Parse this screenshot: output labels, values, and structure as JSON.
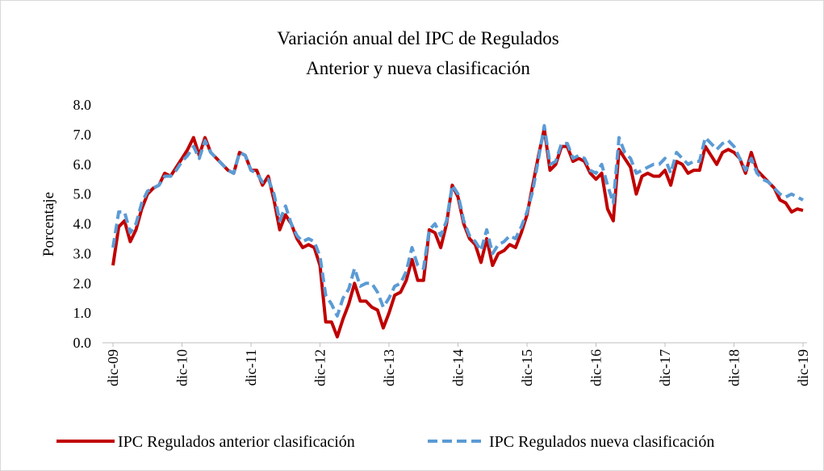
{
  "chart_data": {
    "type": "line",
    "title": "Variación anual del IPC de Regulados",
    "subtitle": "Anterior y nueva clasificación",
    "y_label": "Porcentaje",
    "categories": [
      "dic-09",
      null,
      null,
      null,
      null,
      null,
      null,
      null,
      null,
      null,
      null,
      null,
      "dic-10",
      null,
      null,
      null,
      null,
      null,
      null,
      null,
      null,
      null,
      null,
      null,
      "dic-11",
      null,
      null,
      null,
      null,
      null,
      null,
      null,
      null,
      null,
      null,
      null,
      "dic-12",
      null,
      null,
      null,
      null,
      null,
      null,
      null,
      null,
      null,
      null,
      null,
      "dic-13",
      null,
      null,
      null,
      null,
      null,
      null,
      null,
      null,
      null,
      null,
      null,
      "dic-14",
      null,
      null,
      null,
      null,
      null,
      null,
      null,
      null,
      null,
      null,
      null,
      "dic-15",
      null,
      null,
      null,
      null,
      null,
      null,
      null,
      null,
      null,
      null,
      null,
      "dic-16",
      null,
      null,
      null,
      null,
      null,
      null,
      null,
      null,
      null,
      null,
      null,
      "dic-17",
      null,
      null,
      null,
      null,
      null,
      null,
      null,
      null,
      null,
      null,
      null,
      "dic-18",
      null,
      null,
      null,
      null,
      null,
      null,
      null,
      null,
      null,
      null,
      null,
      "dic-19"
    ],
    "series": [
      {
        "name": "IPC Regulados anterior clasificación",
        "color": "#c00000",
        "dash": false,
        "values": [
          2.6,
          3.9,
          4.1,
          3.4,
          3.8,
          4.5,
          5.0,
          5.2,
          5.3,
          5.7,
          5.6,
          5.9,
          6.2,
          6.5,
          6.9,
          6.3,
          6.9,
          6.4,
          6.2,
          6.0,
          5.8,
          5.7,
          6.4,
          6.3,
          5.8,
          5.8,
          5.3,
          5.6,
          4.8,
          3.8,
          4.3,
          4.0,
          3.5,
          3.2,
          3.3,
          3.2,
          2.6,
          0.7,
          0.7,
          0.2,
          0.8,
          1.3,
          2.0,
          1.4,
          1.4,
          1.2,
          1.1,
          0.5,
          1.0,
          1.6,
          1.7,
          2.1,
          2.8,
          2.1,
          2.1,
          3.8,
          3.7,
          3.2,
          4.0,
          5.3,
          4.9,
          4.0,
          3.5,
          3.3,
          2.7,
          3.5,
          2.6,
          3.0,
          3.1,
          3.3,
          3.2,
          3.7,
          4.3,
          5.3,
          6.3,
          7.2,
          5.8,
          6.0,
          6.6,
          6.6,
          6.1,
          6.2,
          6.1,
          5.7,
          5.5,
          5.7,
          4.5,
          4.1,
          6.5,
          6.2,
          5.9,
          5.0,
          5.6,
          5.7,
          5.6,
          5.6,
          5.8,
          5.3,
          6.1,
          6.0,
          5.7,
          5.8,
          5.8,
          6.6,
          6.3,
          6.0,
          6.4,
          6.5,
          6.4,
          6.2,
          5.7,
          6.4,
          5.8,
          5.6,
          5.4,
          5.2,
          4.8,
          4.7,
          4.4,
          4.5,
          4.45
        ]
      },
      {
        "name": "IPC Regulados nueva clasificación",
        "color": "#5b9bd5",
        "dash": true,
        "values": [
          3.2,
          4.4,
          4.4,
          3.7,
          4.0,
          4.7,
          5.1,
          5.2,
          5.3,
          5.6,
          5.6,
          5.8,
          6.1,
          6.3,
          6.6,
          6.2,
          6.8,
          6.4,
          6.2,
          6.0,
          5.8,
          5.7,
          6.4,
          6.3,
          5.8,
          5.7,
          5.4,
          5.5,
          5.0,
          4.1,
          4.6,
          4.0,
          3.6,
          3.4,
          3.5,
          3.4,
          2.9,
          1.6,
          1.3,
          0.9,
          1.5,
          1.8,
          2.5,
          1.9,
          2.0,
          2.0,
          1.7,
          1.2,
          1.5,
          1.9,
          2.0,
          2.4,
          3.2,
          2.6,
          2.5,
          3.8,
          4.0,
          3.6,
          4.1,
          5.3,
          5.0,
          4.1,
          3.6,
          3.4,
          3.1,
          3.8,
          3.0,
          3.3,
          3.4,
          3.6,
          3.5,
          3.9,
          4.4,
          5.1,
          6.2,
          7.3,
          6.0,
          6.1,
          6.7,
          6.7,
          6.2,
          6.3,
          6.2,
          5.8,
          5.7,
          6.0,
          5.3,
          4.7,
          6.9,
          6.4,
          6.2,
          5.7,
          5.8,
          5.9,
          6.0,
          6.0,
          6.2,
          5.7,
          6.4,
          6.2,
          6.0,
          6.1,
          6.1,
          6.9,
          6.7,
          6.5,
          6.7,
          6.8,
          6.6,
          6.2,
          5.8,
          6.2,
          5.7,
          5.5,
          5.4,
          5.2,
          5.0,
          4.9,
          5.0,
          4.9,
          4.8
        ]
      }
    ],
    "ylim": [
      0,
      8
    ],
    "yticks": [
      {
        "value": 0,
        "label": "0.0"
      },
      {
        "value": 1,
        "label": "1.0"
      },
      {
        "value": 2,
        "label": "2.0"
      },
      {
        "value": 3,
        "label": "3.0"
      },
      {
        "value": 4,
        "label": "4.0"
      },
      {
        "value": 5,
        "label": "5.0"
      },
      {
        "value": 6,
        "label": "6.0"
      },
      {
        "value": 7,
        "label": "7.0"
      },
      {
        "value": 8,
        "label": "8.0"
      }
    ],
    "grid": false,
    "legend": "bottom"
  }
}
